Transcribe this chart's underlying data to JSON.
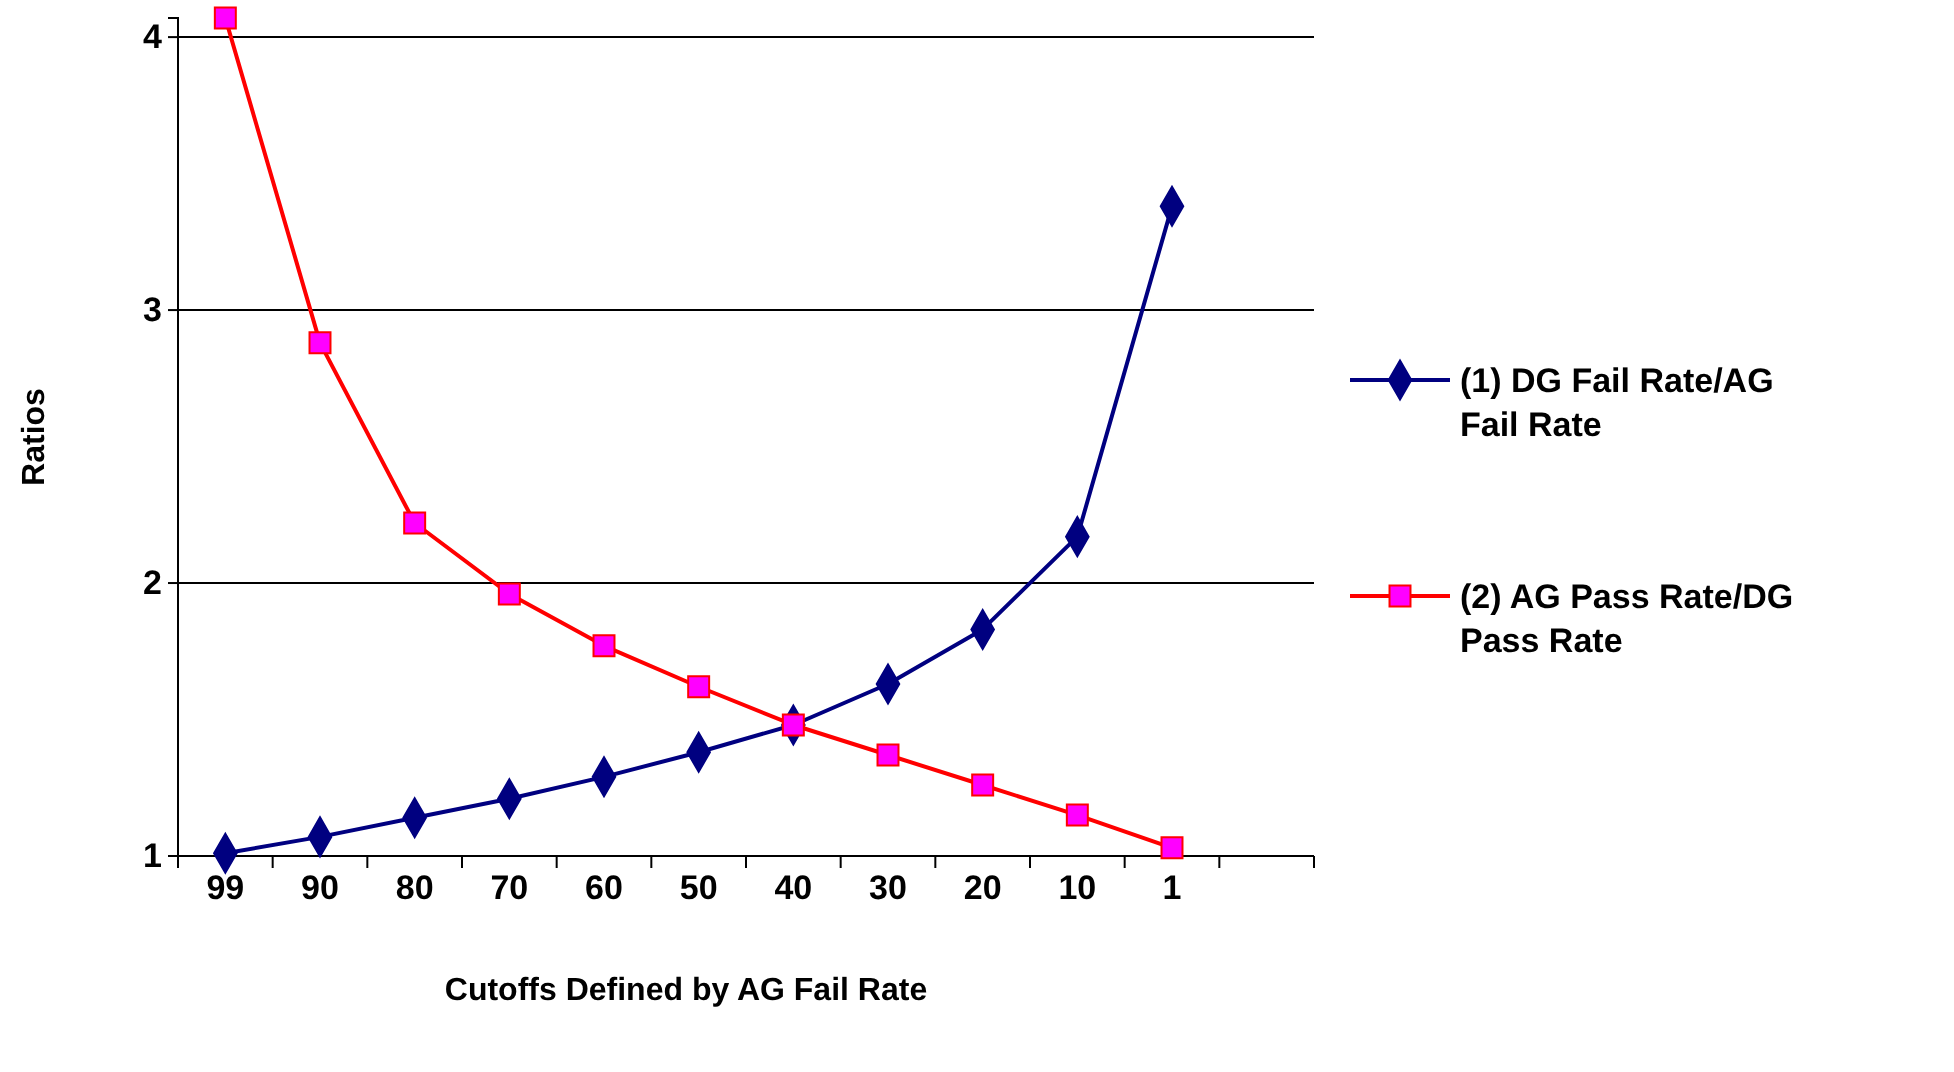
{
  "chart_data": {
    "type": "line",
    "xlabel": "Cutoffs Defined by AG Fail Rate",
    "ylabel": "Ratios",
    "categories": [
      "99",
      "90",
      "80",
      "70",
      "60",
      "50",
      "40",
      "30",
      "20",
      "10",
      "1",
      null
    ],
    "ylim": [
      1,
      4.07
    ],
    "yticks": [
      1,
      2,
      3,
      4
    ],
    "grid": "y",
    "legend": "right",
    "series": [
      {
        "name": "(1) DG Fail Rate/AG Fail Rate",
        "color": "#000080",
        "marker": "diamond",
        "values": [
          1.01,
          1.07,
          1.14,
          1.21,
          1.29,
          1.38,
          1.48,
          1.63,
          1.83,
          2.17,
          3.38,
          null
        ]
      },
      {
        "name": "(2) AG Pass Rate/DG Pass Rate",
        "color": "#ff0000",
        "marker": "square",
        "values": [
          4.07,
          2.88,
          2.22,
          1.96,
          1.77,
          1.62,
          1.48,
          1.37,
          1.26,
          1.15,
          1.03,
          null
        ]
      }
    ]
  }
}
